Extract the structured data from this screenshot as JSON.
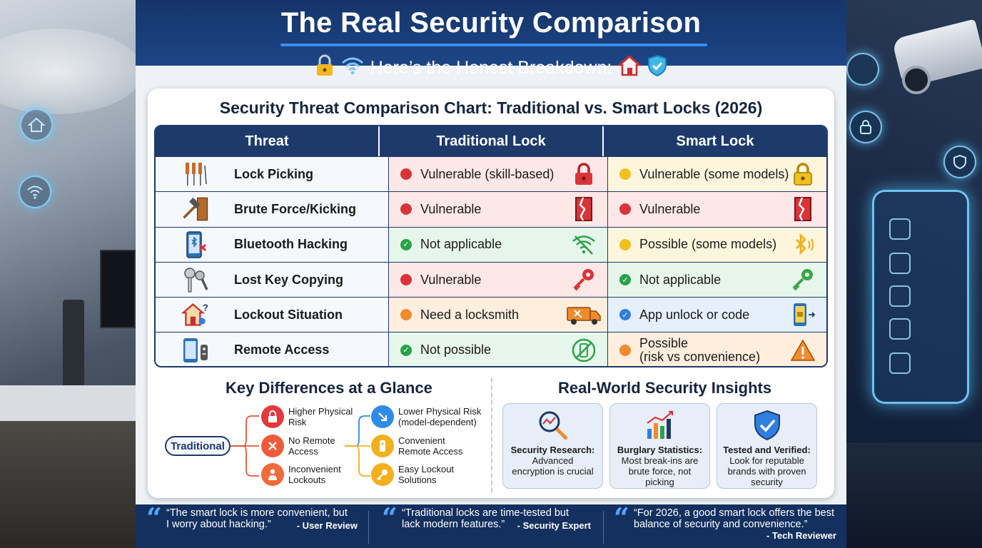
{
  "header": {
    "title": "The Real Security Comparison",
    "subtitle": "Here’s the Honest Breakdown:",
    "subtitle_icons": [
      "padlock-icon",
      "wifi-icon",
      "house-icon",
      "shield-icon"
    ]
  },
  "chart": {
    "title": "Security Threat Comparison Chart: Traditional vs. Smart Locks (2026)",
    "columns": [
      "Threat",
      "Traditional Lock",
      "Smart Lock"
    ],
    "rows": [
      {
        "threat": "Lock Picking",
        "threat_icon": "lock-pick-tools-icon",
        "traditional": {
          "text": "Vulnerable (skill-based)",
          "status": "red",
          "icon": "red-padlock-icon"
        },
        "smart": {
          "text": "Vulnerable (some models)",
          "status": "yellow",
          "icon": "yellow-padlock-icon"
        }
      },
      {
        "threat": "Brute Force/Kicking",
        "threat_icon": "hammer-door-icon",
        "traditional": {
          "text": "Vulnerable",
          "status": "red",
          "icon": "broken-door-icon"
        },
        "smart": {
          "text": "Vulnerable",
          "status": "red",
          "icon": "broken-door-icon"
        }
      },
      {
        "threat": "Bluetooth Hacking",
        "threat_icon": "phone-bluetooth-icon",
        "traditional": {
          "text": "Not applicable",
          "status": "green",
          "icon": "wifi-off-icon"
        },
        "smart": {
          "text": "Possible (some models)",
          "status": "yellow",
          "icon": "bluetooth-icon"
        }
      },
      {
        "threat": "Lost Key Copying",
        "threat_icon": "keys-icon",
        "traditional": {
          "text": "Vulnerable",
          "status": "red",
          "icon": "red-key-icon"
        },
        "smart": {
          "text": "Not applicable",
          "status": "green",
          "icon": "green-key-icon"
        }
      },
      {
        "threat": "Lockout Situation",
        "threat_icon": "house-question-icon",
        "traditional": {
          "text": "Need a locksmith",
          "status": "orange",
          "icon": "locksmith-van-icon"
        },
        "smart": {
          "text": "App unlock or code",
          "status": "blue",
          "icon": "phone-unlock-icon"
        }
      },
      {
        "threat": "Remote Access",
        "threat_icon": "phone-remote-icon",
        "traditional": {
          "text": "Not possible",
          "status": "green",
          "icon": "no-phone-icon"
        },
        "smart": {
          "text_1": "Possible",
          "text_2": "(risk vs convenience)",
          "status": "orange",
          "icon": "warning-icon"
        }
      }
    ]
  },
  "key_differences": {
    "title": "Key Differences at a Glance",
    "root": "Traditional",
    "left": [
      {
        "line1": "Higher Physical",
        "line2": "Risk",
        "icon": "lock-icon",
        "color": "#e23a3a"
      },
      {
        "line1": "No Remote",
        "line2": "Access",
        "icon": "close-icon",
        "color": "#ef5a3b"
      },
      {
        "line1": "Inconvenient",
        "line2": "Lockouts",
        "icon": "person-lockout-icon",
        "color": "#f06a3a"
      }
    ],
    "right": [
      {
        "line1": "Lower Physical Risk",
        "line2": "(model-dependent)",
        "icon": "arrow-down-icon",
        "color": "#2f8be6"
      },
      {
        "line1": "Convenient",
        "line2": "Remote Access",
        "icon": "remote-icon",
        "color": "#f2b01e"
      },
      {
        "line1": "Easy Lockout",
        "line2": "Solutions",
        "icon": "key-icon",
        "color": "#f2b01e"
      }
    ]
  },
  "insights": {
    "title": "Real-World Security Insights",
    "cards": [
      {
        "heading": "Security Research:",
        "body_1": "Advanced",
        "body_2": "encryption is crucial",
        "body_3": "",
        "icon": "magnifier-chart-icon"
      },
      {
        "heading": "Burglary Statistics:",
        "body_1": "Most break-ins are",
        "body_2": "brute force, not",
        "body_3": "picking",
        "icon": "bar-chart-icon"
      },
      {
        "heading": "Tested and Verified:",
        "body_1": "Look for reputable",
        "body_2": "brands with proven",
        "body_3": "security",
        "icon": "shield-check-icon"
      }
    ]
  },
  "quotes": [
    {
      "line1": "“The smart lock is more convenient, but",
      "line2": "I worry about hacking.”",
      "author": "- User Review"
    },
    {
      "line1": "“Traditional locks are time-tested but",
      "line2": "lack modern features.”",
      "author": "- Security Expert"
    },
    {
      "line1": "“For 2026, a good smart lock offers the best",
      "line2": "balance of security and convenience.”",
      "author": "- Tech Reviewer"
    }
  ],
  "colors": {
    "red": "#d8343a",
    "green": "#2aa24a",
    "yellow": "#f2c01e",
    "orange": "#f28a2e",
    "blue": "#2f7fe0",
    "navy": "#1e3a6a"
  }
}
